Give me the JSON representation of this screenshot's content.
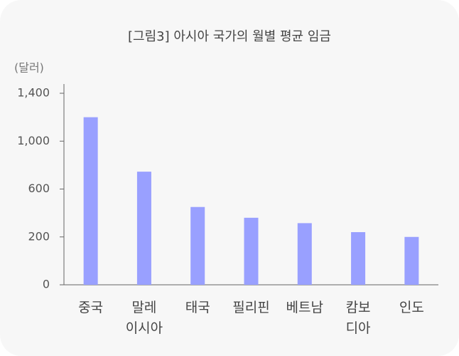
{
  "chart_data": {
    "type": "bar",
    "title": "[그림3] 아시아 국가의 월별 평균 임금",
    "y_label": "(달러)",
    "categories": [
      "중국",
      "말레\n이시아",
      "태국",
      "필리핀",
      "베트남",
      "캄보\n디아",
      "인도"
    ],
    "values": [
      1200,
      745,
      450,
      360,
      315,
      240,
      200
    ],
    "color": "#99a0ff",
    "ylim": [
      0,
      1400
    ],
    "yticks": [
      0,
      200,
      600,
      {
        "value": 1000,
        "label": "1,000"
      },
      {
        "value": 1400,
        "label": "1,400"
      }
    ]
  }
}
